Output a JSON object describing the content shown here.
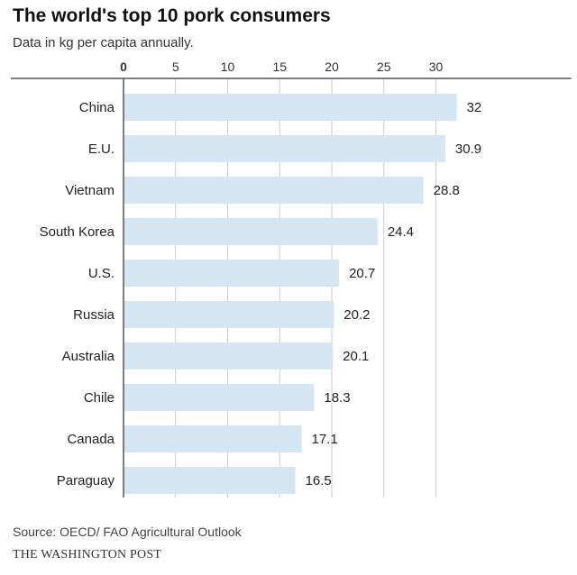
{
  "header": {
    "title": "The world's top 10 pork consumers",
    "subtitle": "Data in kg per capita annually."
  },
  "footer": {
    "source": "Source: OECD/ FAO Agricultural Outlook",
    "credit": "THE WASHINGTON POST"
  },
  "colors": {
    "bar": "#d5e6f2",
    "axis_line": "#555555",
    "grid": "#cccccc"
  },
  "chart_data": {
    "type": "bar",
    "orientation": "horizontal",
    "categories": [
      "China",
      "E.U.",
      "Vietnam",
      "South Korea",
      "U.S.",
      "Russia",
      "Australia",
      "Chile",
      "Canada",
      "Paraguay"
    ],
    "values": [
      32,
      30.9,
      28.8,
      24.4,
      20.7,
      20.2,
      20.1,
      18.3,
      17.1,
      16.5
    ],
    "value_labels": [
      "32",
      "30.9",
      "28.8",
      "24.4",
      "20.7",
      "20.2",
      "20.1",
      "18.3",
      "17.1",
      "16.5"
    ],
    "x_ticks": [
      0,
      5,
      10,
      15,
      20,
      25,
      30
    ],
    "x_tick_labels": [
      "0",
      "5",
      "10",
      "15",
      "20",
      "25",
      "30"
    ],
    "xlim": [
      0,
      43
    ],
    "axis_position": "top",
    "grid": true
  }
}
